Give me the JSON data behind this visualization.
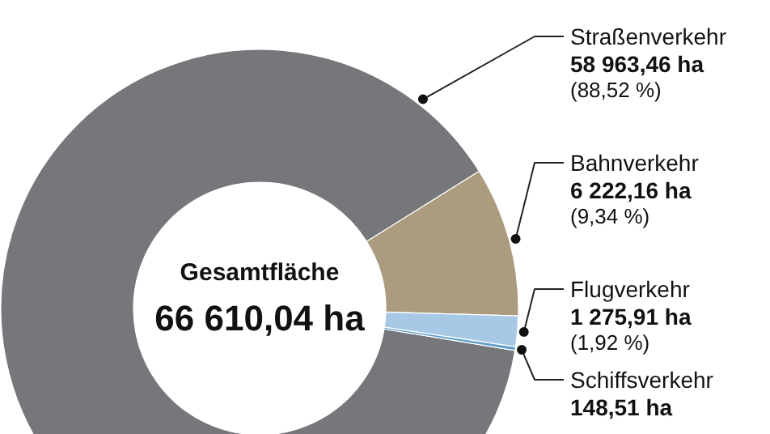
{
  "chart_data": {
    "type": "donut",
    "title": "Gesamtfläche",
    "subtitle": "66 610,04 ha",
    "categories": [
      "Straßenverkehr",
      "Bahnverkehr",
      "Flugverkehr",
      "Schiffsverkehr"
    ],
    "values": [
      58963.46,
      6222.16,
      1275.91,
      148.51
    ],
    "colors": [
      "#76777a",
      "#ab9c80",
      "#a8c9e6",
      "#5f9ec9"
    ],
    "value_labels": [
      "58 963,46 ha\n(88,52 %)",
      "6 222,16 ha\n(9,34 %)",
      "1 275,91 ha\n(1,92 %)",
      "148,51 ha"
    ]
  }
}
